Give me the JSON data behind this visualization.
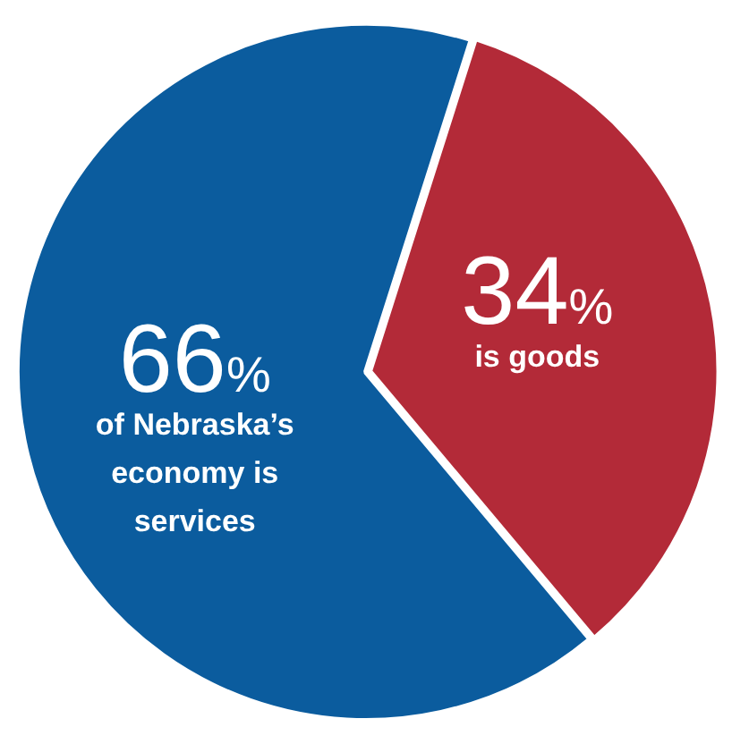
{
  "chart_data": {
    "type": "pie",
    "categories": [
      "of Nebraska’s economy is services",
      "is goods"
    ],
    "values": [
      66,
      34
    ],
    "value_labels": [
      "66%",
      "34%"
    ],
    "colors": [
      "#0b5c9e",
      "#b32a38"
    ],
    "legend": false
  }
}
